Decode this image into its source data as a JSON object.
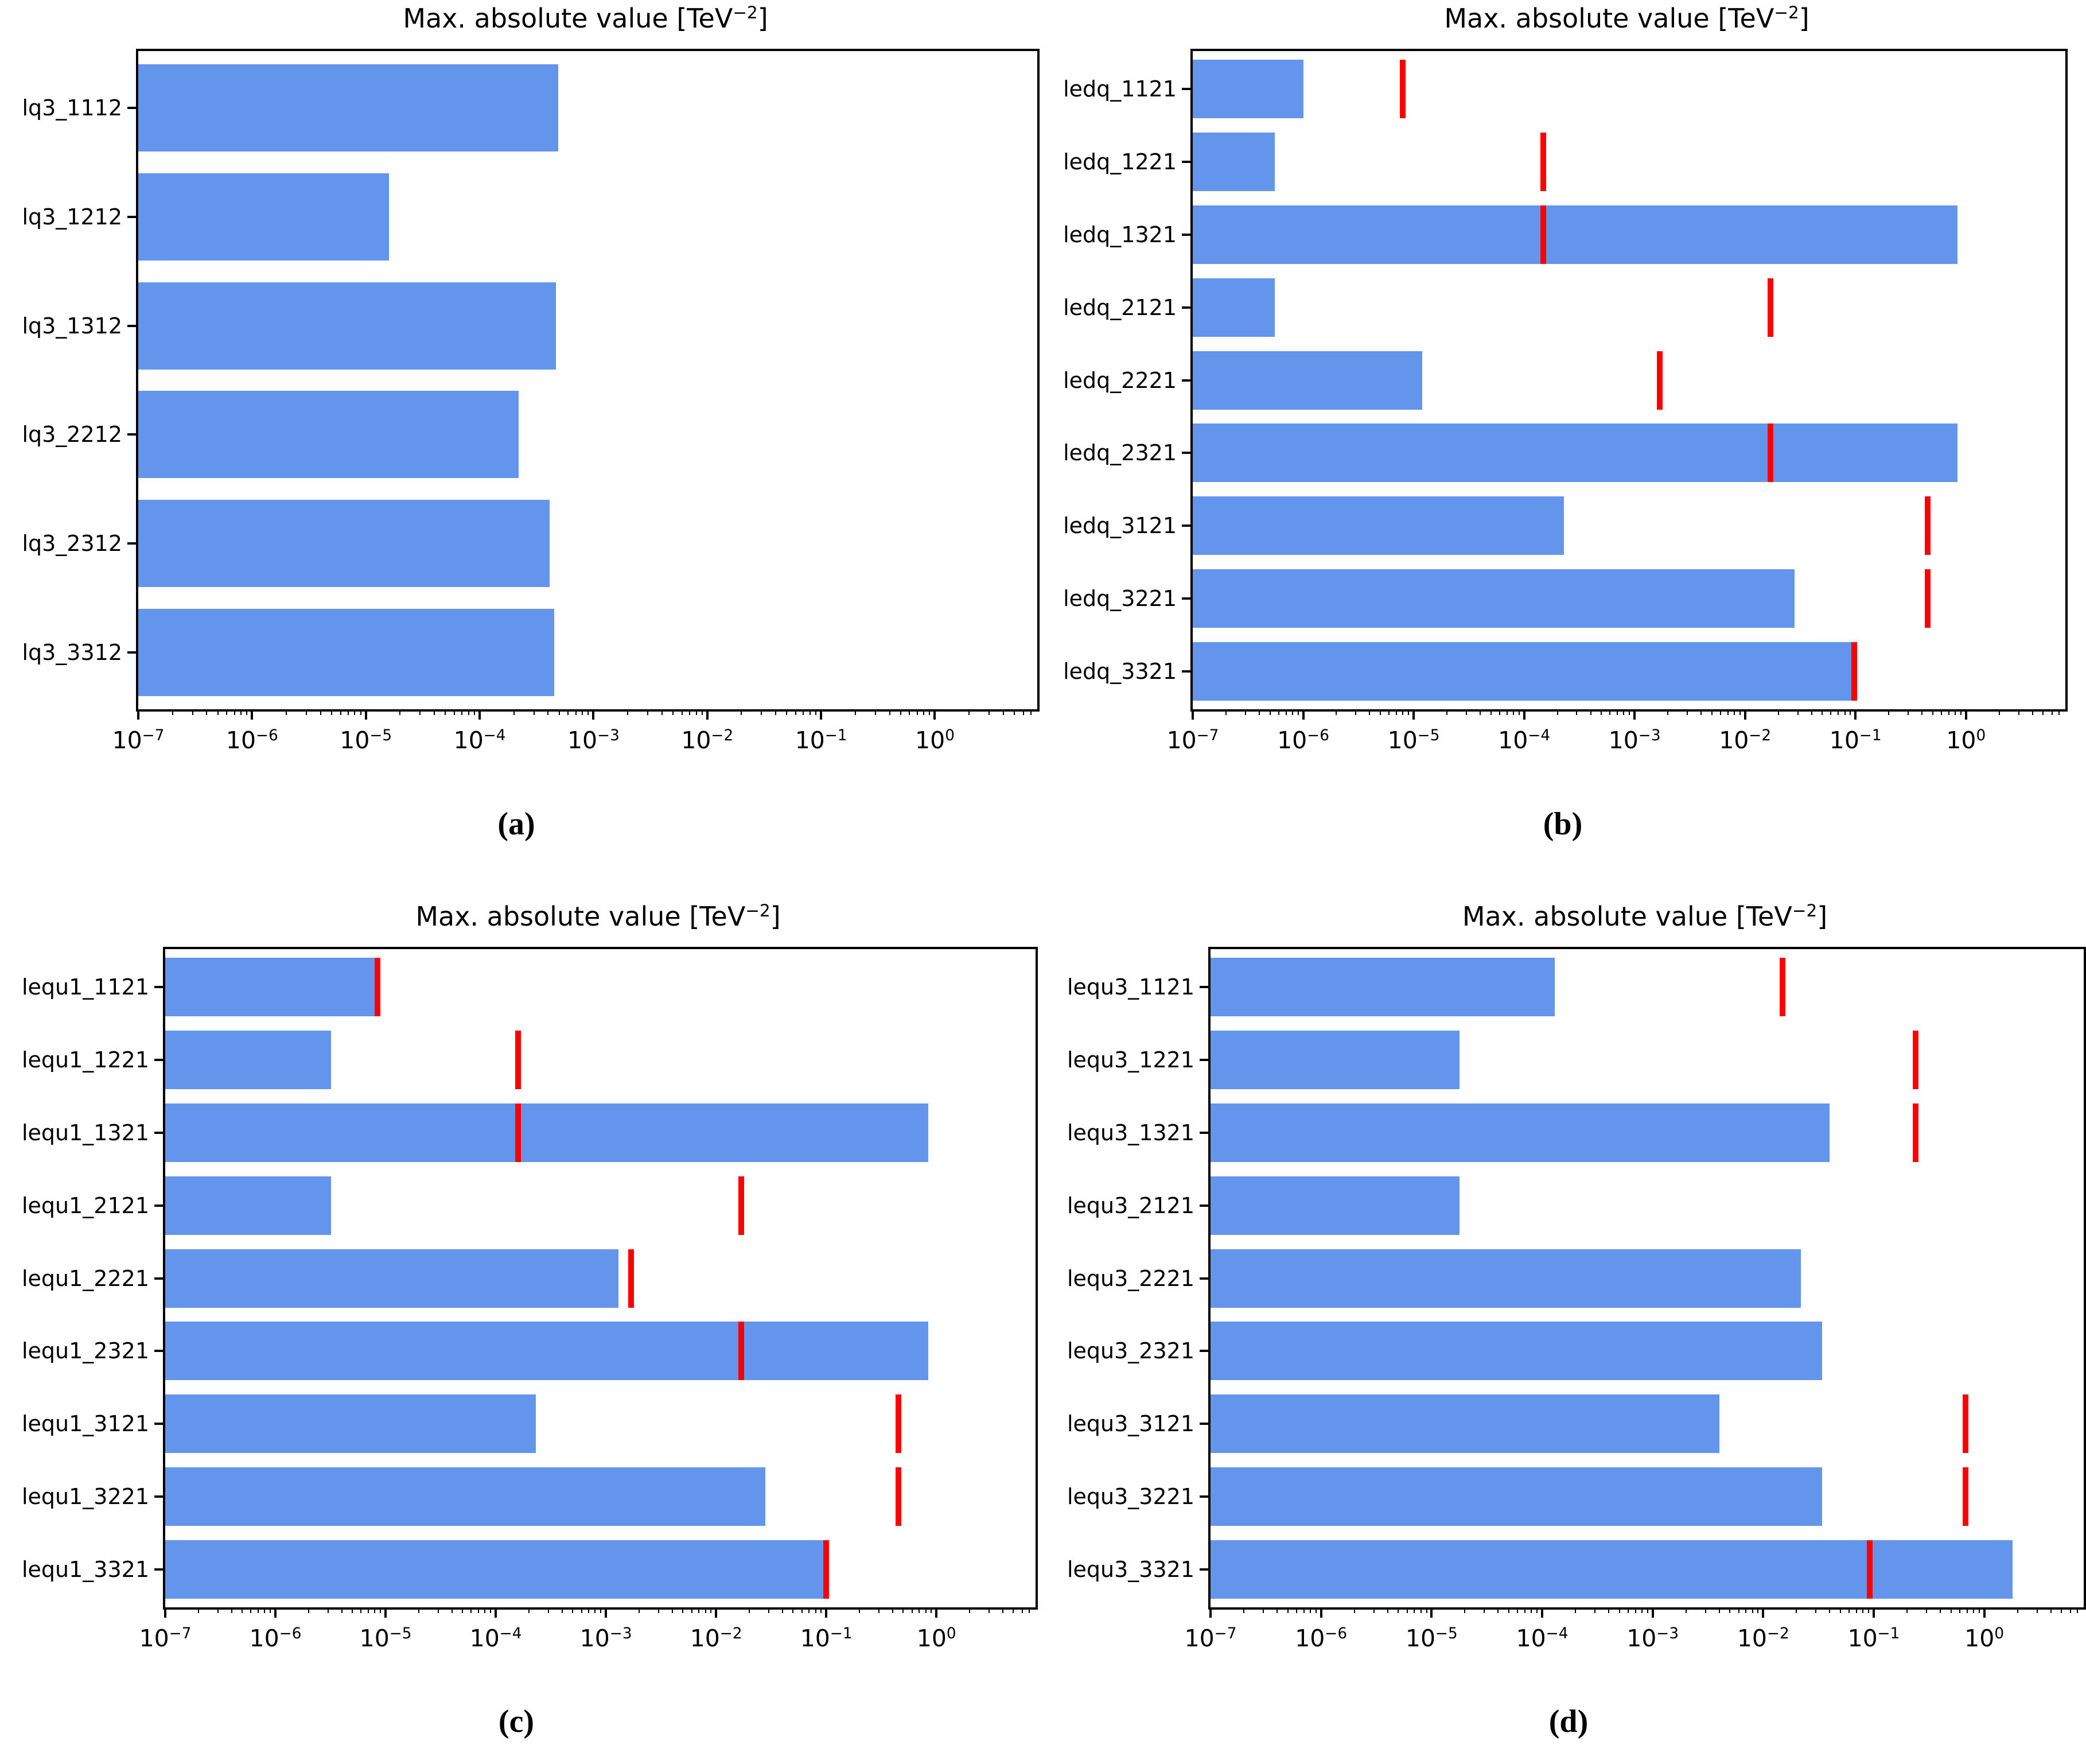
{
  "figure": {
    "background_color": "#ffffff",
    "bar_color": "#6495ed",
    "marker_color": "#ff0000",
    "axis_color": "#000000",
    "x_axis": {
      "scale": "log",
      "range_log10": [
        -7,
        0.9
      ],
      "tick_exponents": [
        -7,
        -6,
        -5,
        -4,
        -3,
        -2,
        -1,
        0
      ],
      "tick_labels": [
        "10^{−7}",
        "10^{−6}",
        "10^{−5}",
        "10^{−4}",
        "10^{−3}",
        "10^{−2}",
        "10^{−1}",
        "10^{0}"
      ],
      "grid": false
    }
  },
  "chart_data": [
    {
      "panel_id": "a",
      "caption": "(a)",
      "type": "bar",
      "orientation": "horizontal",
      "xscale": "log",
      "title": "Max. absolute value [TeV^{−2}]",
      "xlim": [
        1e-07,
        7.9
      ],
      "legend": "none",
      "categories": [
        "lq3_1112",
        "lq3_1212",
        "lq3_1312",
        "lq3_2212",
        "lq3_2312",
        "lq3_3312"
      ],
      "series": [
        {
          "name": "max-absolute-value",
          "color": "#6495ed",
          "values": [
            0.00049,
            1.6e-05,
            0.00047,
            0.00022,
            0.00041,
            0.00045
          ]
        },
        {
          "name": "smeft-limit-marker",
          "color": "#ff0000",
          "values": [
            null,
            null,
            null,
            null,
            null,
            null
          ]
        }
      ]
    },
    {
      "panel_id": "b",
      "caption": "(b)",
      "type": "bar",
      "orientation": "horizontal",
      "xscale": "log",
      "title": "Max. absolute value [TeV^{−2}]",
      "xlim": [
        1e-07,
        7.9
      ],
      "legend": "none",
      "categories": [
        "ledq_1121",
        "ledq_1221",
        "ledq_1321",
        "ledq_2121",
        "ledq_2221",
        "ledq_2321",
        "ledq_3121",
        "ledq_3221",
        "ledq_3321"
      ],
      "series": [
        {
          "name": "max-absolute-value",
          "color": "#6495ed",
          "values": [
            1e-06,
            5.5e-07,
            0.84,
            5.5e-07,
            1.2e-05,
            0.84,
            0.00023,
            0.028,
            0.095
          ]
        },
        {
          "name": "smeft-limit-marker",
          "color": "#ff0000",
          "values": [
            8e-06,
            0.00015,
            0.00015,
            0.017,
            0.0017,
            0.017,
            0.45,
            0.45,
            0.097
          ]
        }
      ]
    },
    {
      "panel_id": "c",
      "caption": "(c)",
      "type": "bar",
      "orientation": "horizontal",
      "xscale": "log",
      "title": "Max. absolute value [TeV^{−2}]",
      "xlim": [
        1e-07,
        7.9
      ],
      "legend": "none",
      "categories": [
        "lequ1_1121",
        "lequ1_1221",
        "lequ1_1321",
        "lequ1_2121",
        "lequ1_2221",
        "lequ1_2321",
        "lequ1_3121",
        "lequ1_3221",
        "lequ1_3321"
      ],
      "series": [
        {
          "name": "max-absolute-value",
          "color": "#6495ed",
          "values": [
            8e-06,
            3.2e-06,
            0.84,
            3.2e-06,
            0.0013,
            0.84,
            0.00023,
            0.028,
            0.095
          ]
        },
        {
          "name": "smeft-limit-marker",
          "color": "#ff0000",
          "values": [
            8.5e-06,
            0.00016,
            0.00016,
            0.017,
            0.0017,
            0.017,
            0.45,
            0.45,
            0.1
          ]
        }
      ]
    },
    {
      "panel_id": "d",
      "caption": "(d)",
      "type": "bar",
      "orientation": "horizontal",
      "xscale": "log",
      "title": "Max. absolute value [TeV^{−2}]",
      "xlim": [
        1e-07,
        7.9
      ],
      "legend": "none",
      "categories": [
        "lequ3_1121",
        "lequ3_1221",
        "lequ3_1321",
        "lequ3_2121",
        "lequ3_2221",
        "lequ3_2321",
        "lequ3_3121",
        "lequ3_3221",
        "lequ3_3321"
      ],
      "series": [
        {
          "name": "max-absolute-value",
          "color": "#6495ed",
          "values": [
            0.00013,
            1.8e-05,
            0.04,
            1.8e-05,
            0.022,
            0.034,
            0.004,
            0.034,
            1.8
          ]
        },
        {
          "name": "smeft-limit-marker",
          "color": "#ff0000",
          "values": [
            0.015,
            0.24,
            0.24,
            null,
            null,
            null,
            0.68,
            0.68,
            0.092
          ]
        }
      ]
    }
  ]
}
